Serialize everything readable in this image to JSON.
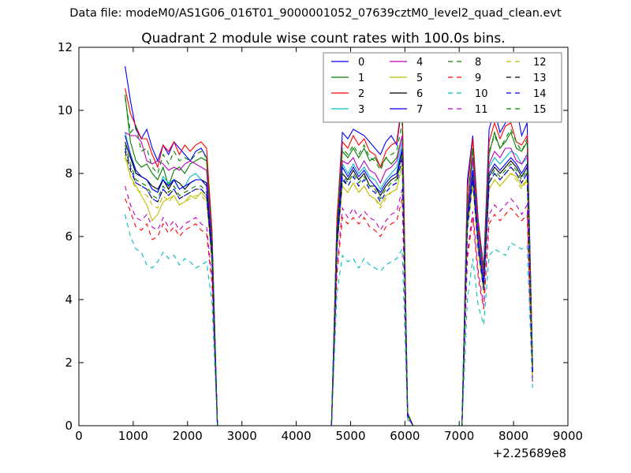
{
  "figure": {
    "suptitle": "Data file: modeM0/AS1G06_016T01_9000001052_07639cztM0_level2_quad_clean.evt"
  },
  "chart_data": {
    "type": "line",
    "title": "Quadrant 2 module wise count rates with 100.0s bins.",
    "xlabel": "",
    "ylabel": "",
    "x_offset_label": "+2.25689e8",
    "xlim": [
      0,
      9000
    ],
    "ylim": [
      0,
      12
    ],
    "xticks": [
      0,
      1000,
      2000,
      3000,
      4000,
      5000,
      6000,
      7000,
      8000,
      9000
    ],
    "xtick_labels": [
      "0",
      "1000",
      "2000",
      "3000",
      "4000",
      "5000",
      "6000",
      "7000",
      "8000",
      "9000"
    ],
    "yticks": [
      0,
      2,
      4,
      6,
      8,
      10,
      12
    ],
    "ytick_labels": [
      "0",
      "2",
      "4",
      "6",
      "8",
      "10",
      "12"
    ],
    "grid": false,
    "legend_position": "top-right",
    "legend_columns": 4,
    "x": [
      850,
      950,
      1050,
      1150,
      1250,
      1350,
      1450,
      1550,
      1650,
      1750,
      1850,
      1950,
      2050,
      2150,
      2250,
      2350,
      2450,
      2550,
      2650,
      4650,
      4750,
      4850,
      4950,
      5050,
      5150,
      5250,
      5350,
      5450,
      5550,
      5650,
      5750,
      5850,
      5950,
      6050,
      6150,
      7050,
      7150,
      7250,
      7350,
      7450,
      7550,
      7650,
      7750,
      7850,
      7950,
      8050,
      8150,
      8250,
      8350
    ],
    "series": [
      {
        "name": "0",
        "color": "#0000ff",
        "dash": "solid",
        "values": [
          11.4,
          10.3,
          9.4,
          9.1,
          9.4,
          8.8,
          8.4,
          8.9,
          8.6,
          9.0,
          8.8,
          8.6,
          8.4,
          8.7,
          8.8,
          8.5,
          6.0,
          0.0,
          0.0,
          0.0,
          6.5,
          9.3,
          9.1,
          9.4,
          9.3,
          9.2,
          9.0,
          8.8,
          8.6,
          9.0,
          9.2,
          8.9,
          10.2,
          0.4,
          0.0,
          0.0,
          7.8,
          9.2,
          6.5,
          5.0,
          9.4,
          10.0,
          9.3,
          9.6,
          9.9,
          10.1,
          9.2,
          9.6,
          2.0
        ]
      },
      {
        "name": "1",
        "color": "#008000",
        "dash": "solid",
        "values": [
          10.5,
          9.0,
          8.4,
          8.2,
          8.3,
          8.0,
          7.8,
          8.2,
          7.6,
          8.1,
          8.2,
          8.0,
          8.3,
          8.4,
          8.5,
          8.4,
          5.9,
          0.0,
          0.0,
          0.0,
          6.3,
          8.7,
          8.5,
          8.8,
          8.5,
          8.8,
          8.4,
          8.5,
          8.2,
          8.5,
          8.3,
          8.5,
          9.2,
          0.4,
          0.0,
          0.0,
          7.0,
          8.8,
          6.3,
          4.9,
          8.6,
          9.3,
          8.8,
          9.0,
          9.3,
          8.8,
          8.7,
          9.0,
          1.9
        ]
      },
      {
        "name": "2",
        "color": "#ff0000",
        "dash": "solid",
        "values": [
          10.7,
          9.9,
          9.5,
          9.1,
          9.1,
          8.6,
          8.2,
          8.9,
          8.7,
          9.0,
          8.6,
          8.9,
          8.7,
          8.9,
          9.0,
          8.8,
          6.2,
          0.0,
          0.0,
          0.0,
          6.6,
          9.0,
          8.8,
          9.2,
          8.9,
          9.1,
          8.7,
          8.6,
          8.2,
          8.7,
          8.9,
          9.0,
          10.3,
          0.4,
          0.0,
          0.0,
          7.5,
          9.1,
          6.4,
          4.9,
          9.0,
          9.6,
          9.1,
          9.5,
          9.6,
          9.0,
          8.9,
          9.2,
          2.0
        ]
      },
      {
        "name": "3",
        "color": "#00bfbf",
        "dash": "solid",
        "values": [
          9.3,
          8.6,
          8.0,
          7.9,
          7.8,
          7.5,
          7.4,
          7.9,
          7.7,
          7.8,
          7.5,
          7.6,
          7.9,
          8.0,
          7.8,
          7.7,
          5.5,
          0.0,
          0.0,
          0.0,
          5.9,
          8.3,
          8.0,
          8.3,
          8.0,
          8.2,
          7.9,
          7.8,
          7.5,
          7.8,
          8.0,
          8.2,
          9.0,
          0.4,
          0.0,
          0.0,
          6.8,
          8.4,
          6.0,
          4.7,
          8.2,
          8.5,
          8.3,
          8.5,
          8.7,
          8.6,
          8.3,
          8.5,
          1.8
        ]
      },
      {
        "name": "4",
        "color": "#bf00bf",
        "dash": "solid",
        "values": [
          9.3,
          9.2,
          9.2,
          9.0,
          8.4,
          8.3,
          8.4,
          8.3,
          8.1,
          8.2,
          8.1,
          8.3,
          8.4,
          8.3,
          8.2,
          8.1,
          5.8,
          0.0,
          0.0,
          0.0,
          6.1,
          8.4,
          8.3,
          8.5,
          8.1,
          8.4,
          8.1,
          8.0,
          7.7,
          8.1,
          8.2,
          8.4,
          9.2,
          0.4,
          0.0,
          0.0,
          6.8,
          8.5,
          6.1,
          4.7,
          8.3,
          8.7,
          8.5,
          8.8,
          8.8,
          8.4,
          8.3,
          8.6,
          1.8
        ]
      },
      {
        "name": "5",
        "color": "#bfbf00",
        "dash": "solid",
        "values": [
          8.6,
          7.9,
          7.6,
          7.3,
          7.0,
          6.5,
          6.7,
          7.1,
          7.2,
          7.3,
          7.0,
          7.1,
          7.3,
          7.2,
          7.4,
          7.2,
          5.2,
          0.0,
          0.0,
          0.0,
          5.6,
          7.6,
          7.4,
          7.7,
          7.4,
          7.6,
          7.3,
          7.2,
          7.0,
          7.3,
          7.4,
          7.5,
          8.3,
          0.3,
          0.0,
          0.0,
          6.2,
          7.7,
          5.5,
          4.3,
          7.5,
          7.8,
          7.6,
          7.8,
          8.0,
          7.9,
          7.6,
          7.8,
          1.6
        ]
      },
      {
        "name": "6",
        "color": "#000000",
        "dash": "solid",
        "values": [
          9.0,
          8.5,
          8.0,
          7.9,
          7.8,
          7.6,
          7.5,
          7.8,
          7.5,
          7.8,
          7.7,
          7.5,
          7.7,
          7.8,
          7.8,
          7.7,
          5.5,
          0.0,
          0.0,
          0.0,
          5.9,
          8.0,
          7.8,
          8.1,
          7.8,
          8.0,
          7.6,
          7.6,
          7.3,
          7.6,
          7.8,
          7.9,
          8.7,
          0.3,
          0.0,
          0.0,
          6.5,
          8.0,
          5.7,
          4.5,
          7.9,
          8.2,
          8.0,
          8.2,
          8.4,
          8.2,
          7.9,
          8.2,
          1.7
        ]
      },
      {
        "name": "7",
        "color": "#0000ff",
        "dash": "solid",
        "values": [
          9.2,
          8.6,
          8.1,
          7.9,
          7.8,
          7.5,
          7.4,
          7.8,
          7.6,
          7.8,
          7.5,
          7.6,
          7.7,
          7.8,
          7.8,
          7.6,
          5.5,
          0.0,
          0.0,
          0.0,
          6.0,
          8.2,
          7.9,
          8.2,
          7.9,
          8.1,
          7.8,
          7.6,
          7.4,
          7.7,
          7.9,
          8.0,
          8.8,
          0.3,
          0.0,
          0.0,
          6.6,
          8.1,
          5.8,
          4.5,
          8.0,
          8.3,
          8.1,
          8.3,
          8.5,
          8.3,
          8.0,
          8.3,
          1.7
        ]
      },
      {
        "name": "8",
        "color": "#008000",
        "dash": "dashed",
        "values": [
          8.9,
          8.3,
          7.8,
          7.7,
          7.6,
          7.3,
          7.2,
          7.6,
          7.4,
          7.6,
          7.3,
          7.4,
          7.5,
          7.6,
          7.6,
          7.4,
          5.4,
          0.0,
          0.0,
          0.0,
          5.8,
          8.0,
          7.7,
          8.0,
          7.7,
          7.9,
          7.6,
          7.5,
          7.2,
          7.5,
          7.7,
          7.8,
          8.6,
          0.3,
          0.0,
          0.0,
          6.4,
          7.9,
          5.7,
          4.4,
          7.8,
          8.1,
          7.9,
          8.1,
          8.3,
          8.1,
          7.8,
          8.1,
          1.7
        ]
      },
      {
        "name": "9",
        "color": "#ff0000",
        "dash": "dashed",
        "values": [
          7.2,
          6.8,
          6.3,
          6.2,
          6.4,
          5.9,
          6.0,
          6.4,
          6.1,
          6.3,
          6.0,
          6.2,
          6.3,
          6.4,
          6.2,
          6.1,
          4.5,
          0.0,
          0.0,
          0.0,
          4.8,
          6.6,
          6.4,
          6.6,
          6.4,
          6.6,
          6.3,
          6.2,
          6.0,
          6.3,
          6.4,
          6.5,
          7.2,
          0.3,
          0.0,
          0.0,
          5.3,
          6.6,
          4.7,
          3.7,
          6.4,
          6.7,
          6.5,
          6.7,
          6.9,
          6.7,
          6.5,
          6.7,
          1.4
        ]
      },
      {
        "name": "10",
        "color": "#00bfbf",
        "dash": "dashed",
        "values": [
          6.7,
          6.0,
          5.6,
          5.5,
          5.1,
          5.0,
          5.2,
          5.5,
          5.3,
          5.4,
          5.1,
          5.3,
          5.2,
          5.0,
          5.1,
          5.2,
          3.9,
          0.0,
          0.0,
          0.0,
          4.2,
          5.4,
          5.2,
          5.3,
          5.0,
          5.3,
          5.1,
          5.0,
          4.9,
          5.1,
          5.2,
          5.3,
          5.6,
          0.2,
          0.0,
          0.0,
          4.0,
          5.3,
          3.8,
          3.2,
          5.4,
          5.6,
          5.5,
          5.4,
          5.8,
          5.7,
          5.6,
          5.7,
          1.2
        ]
      },
      {
        "name": "11",
        "color": "#bf00bf",
        "dash": "dashed",
        "values": [
          7.6,
          7.0,
          6.6,
          6.5,
          6.7,
          6.3,
          6.2,
          6.6,
          6.3,
          6.5,
          6.2,
          6.4,
          6.5,
          6.6,
          6.4,
          6.3,
          4.7,
          0.0,
          0.0,
          0.0,
          5.0,
          6.9,
          6.6,
          6.9,
          6.6,
          6.8,
          6.6,
          6.5,
          6.2,
          6.5,
          6.7,
          6.8,
          7.5,
          0.3,
          0.0,
          0.0,
          5.5,
          6.8,
          4.9,
          3.8,
          6.7,
          7.0,
          6.8,
          7.0,
          7.2,
          7.0,
          6.7,
          7.0,
          1.5
        ]
      },
      {
        "name": "12",
        "color": "#bfbf00",
        "dash": "dashed",
        "values": [
          8.5,
          7.9,
          7.5,
          7.4,
          7.3,
          7.0,
          6.9,
          7.3,
          7.1,
          7.3,
          7.0,
          7.1,
          7.2,
          7.3,
          7.3,
          7.1,
          5.2,
          0.0,
          0.0,
          0.0,
          5.5,
          7.6,
          7.4,
          7.7,
          7.4,
          7.6,
          7.3,
          7.2,
          6.9,
          7.2,
          7.4,
          7.5,
          8.3,
          0.3,
          0.0,
          0.0,
          6.1,
          7.6,
          5.5,
          4.2,
          7.5,
          7.8,
          7.6,
          7.8,
          8.0,
          7.8,
          7.5,
          7.8,
          1.6
        ]
      },
      {
        "name": "13",
        "color": "#000000",
        "dash": "dashed",
        "values": [
          8.7,
          8.1,
          7.7,
          7.6,
          7.5,
          7.2,
          7.1,
          7.5,
          7.3,
          7.5,
          7.2,
          7.3,
          7.4,
          7.5,
          7.5,
          7.3,
          5.3,
          0.0,
          0.0,
          0.0,
          5.7,
          7.8,
          7.6,
          7.9,
          7.6,
          7.8,
          7.5,
          7.4,
          7.1,
          7.4,
          7.6,
          7.7,
          8.5,
          0.3,
          0.0,
          0.0,
          6.3,
          7.8,
          5.6,
          4.3,
          7.7,
          8.0,
          7.8,
          8.0,
          8.2,
          8.0,
          7.7,
          8.0,
          1.7
        ]
      },
      {
        "name": "14",
        "color": "#0000ff",
        "dash": "dashed",
        "values": [
          8.8,
          8.2,
          7.7,
          7.6,
          7.5,
          7.2,
          7.1,
          7.5,
          7.3,
          7.5,
          7.2,
          7.3,
          7.4,
          7.5,
          7.5,
          7.3,
          5.3,
          0.0,
          0.0,
          0.0,
          5.7,
          7.9,
          7.6,
          7.9,
          7.6,
          7.8,
          7.5,
          7.4,
          7.1,
          7.4,
          7.6,
          7.7,
          8.5,
          0.3,
          0.0,
          0.0,
          6.3,
          7.8,
          5.6,
          4.4,
          7.7,
          8.0,
          7.8,
          8.0,
          8.2,
          8.0,
          7.7,
          8.0,
          1.7
        ]
      },
      {
        "name": "15",
        "color": "#008000",
        "dash": "dashed",
        "values": [
          10.4,
          9.3,
          9.5,
          8.7,
          8.8,
          8.2,
          8.0,
          8.6,
          8.3,
          8.7,
          8.4,
          8.5,
          8.4,
          8.6,
          8.7,
          8.5,
          6.1,
          0.0,
          0.0,
          0.0,
          6.4,
          8.8,
          8.6,
          8.9,
          8.6,
          8.9,
          8.5,
          8.4,
          8.1,
          8.5,
          8.6,
          8.7,
          9.6,
          0.4,
          0.0,
          0.0,
          7.1,
          8.8,
          6.3,
          4.9,
          8.7,
          9.2,
          8.8,
          9.1,
          9.4,
          9.0,
          8.7,
          9.1,
          1.9
        ]
      }
    ]
  }
}
